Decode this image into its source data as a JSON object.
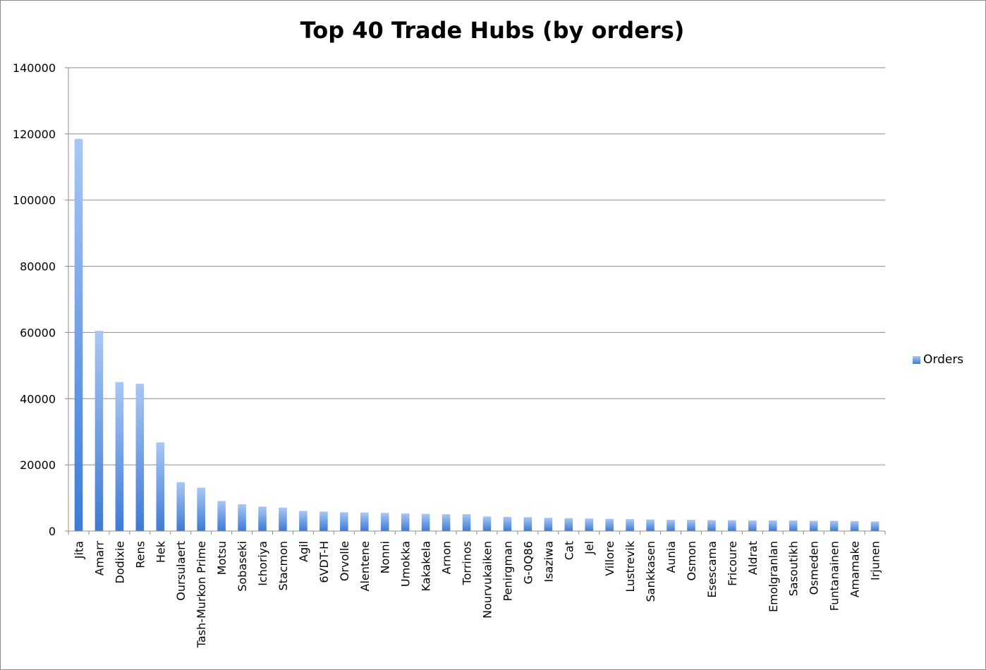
{
  "chart_data": {
    "type": "bar",
    "title": "Top 40 Trade Hubs (by orders)",
    "xlabel": "",
    "ylabel": "",
    "ylim": [
      0,
      140000
    ],
    "yticks": [
      "0",
      "20000",
      "40000",
      "60000",
      "80000",
      "100000",
      "120000",
      "140000"
    ],
    "grid": true,
    "legend_position": "right",
    "categories": [
      "Jita",
      "Amarr",
      "Dodixie",
      "Rens",
      "Hek",
      "Oursulaert",
      "Tash-Murkon Prime",
      "Motsu",
      "Sobaseki",
      "Ichoriya",
      "Stacmon",
      "Agil",
      "6VDT-H",
      "Orvolle",
      "Alentene",
      "Nonni",
      "Umokka",
      "Kakakela",
      "Arnon",
      "Torrinos",
      "Nourvukaiken",
      "Penirgman",
      "G-0Q86",
      "Isaziwa",
      "Cat",
      "Jel",
      "Villore",
      "Lustrevik",
      "Sankkasen",
      "Aunia",
      "Osmon",
      "Esescama",
      "Fricoure",
      "Aldrat",
      "Emolgranlan",
      "Sasoutikh",
      "Osmeden",
      "Funtanainen",
      "Amamake",
      "Irjunen"
    ],
    "series": [
      {
        "name": "Orders",
        "values": [
          118500,
          60500,
          45000,
          44500,
          26800,
          14800,
          13100,
          9100,
          8100,
          7400,
          7100,
          6100,
          5900,
          5700,
          5600,
          5500,
          5300,
          5200,
          5100,
          5100,
          4400,
          4300,
          4200,
          4000,
          3900,
          3800,
          3700,
          3600,
          3500,
          3400,
          3400,
          3300,
          3300,
          3200,
          3200,
          3200,
          3100,
          3100,
          3000,
          2900
        ]
      }
    ],
    "colors": {
      "bar_top": "#a9c7f3",
      "bar_bottom": "#3d7ad6",
      "grid": "#8c8c8c",
      "axis": "#8c8c8c"
    }
  }
}
